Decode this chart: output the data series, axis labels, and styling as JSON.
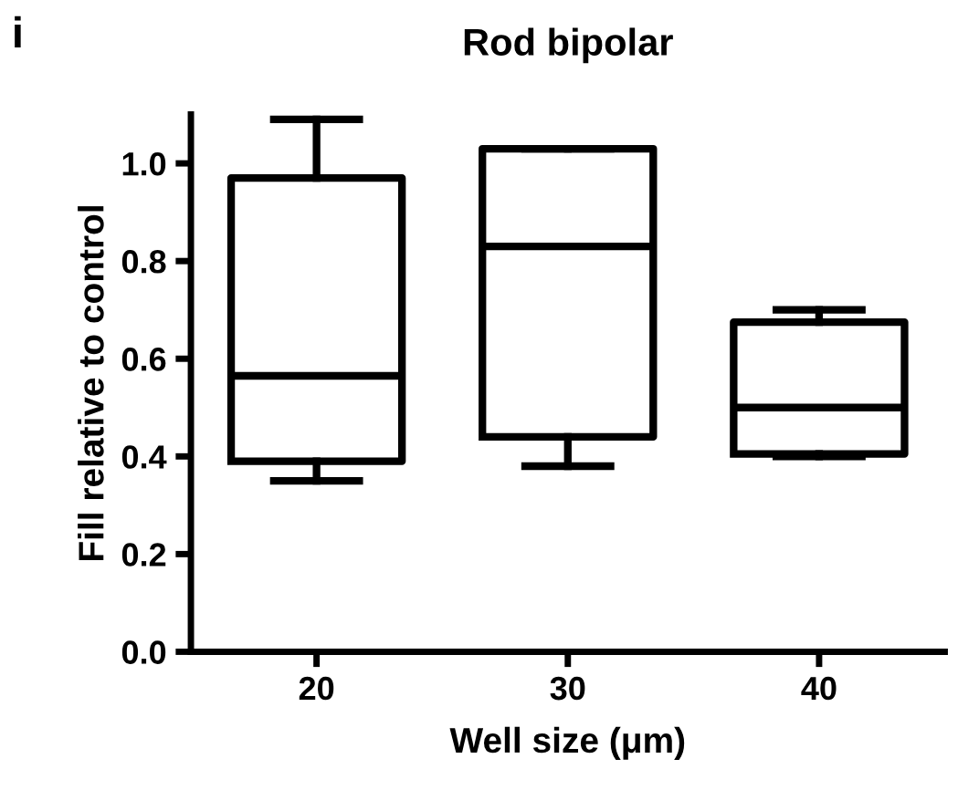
{
  "chart_data": {
    "type": "box",
    "title": "Rod bipolar",
    "xlabel": "Well size (μm)",
    "ylabel": "Fill relative to control",
    "annotations": [
      "i"
    ],
    "categories": [
      "20",
      "30",
      "40"
    ],
    "boxes": [
      {
        "low": 0.35,
        "q1": 0.39,
        "median": 0.565,
        "q3": 0.97,
        "high": 1.09
      },
      {
        "low": 0.38,
        "q1": 0.44,
        "median": 0.83,
        "q3": 1.03,
        "high": 1.03
      },
      {
        "low": 0.4,
        "q1": 0.405,
        "median": 0.5,
        "q3": 0.675,
        "high": 0.7
      }
    ],
    "color": "#000000",
    "ylim": [
      0,
      1.1
    ],
    "yticks": [
      {
        "value": 0,
        "label": "0.0"
      },
      {
        "value": 0.2,
        "label": "0.2"
      },
      {
        "value": 0.4,
        "label": "0.4"
      },
      {
        "value": 0.6,
        "label": "0.6"
      },
      {
        "value": 0.8,
        "label": "0.8"
      },
      {
        "value": 1.0,
        "label": "1.0"
      }
    ],
    "grid": false,
    "legend": false
  }
}
